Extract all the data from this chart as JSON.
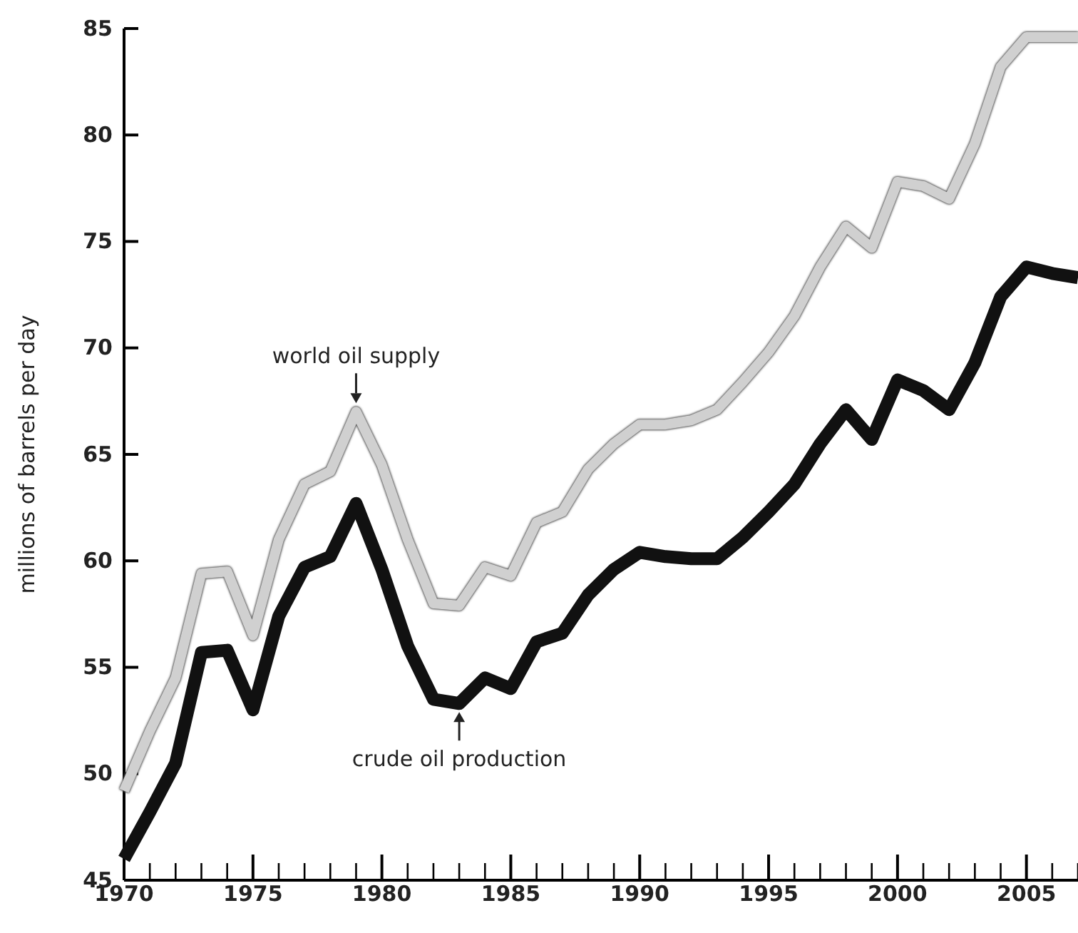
{
  "chart_data": {
    "type": "line",
    "ylabel": "millions of barrels per day",
    "x": [
      1970,
      1971,
      1972,
      1973,
      1974,
      1975,
      1976,
      1977,
      1978,
      1979,
      1980,
      1981,
      1982,
      1983,
      1984,
      1985,
      1986,
      1987,
      1988,
      1989,
      1990,
      1991,
      1992,
      1993,
      1994,
      1995,
      1996,
      1997,
      1998,
      1999,
      2000,
      2001,
      2002,
      2003,
      2004,
      2005,
      2006,
      2007
    ],
    "series": [
      {
        "color": "#d0d0d0",
        "values": [
          49.2,
          52,
          54.5,
          59.4,
          59.5,
          56.5,
          61,
          63.6,
          64.2,
          67,
          64.5,
          61,
          58,
          57.9,
          59.7,
          59.3,
          61.8,
          62.3,
          64.3,
          65.5,
          66.4,
          66.4,
          66.6,
          67.1,
          68.4,
          69.8,
          71.5,
          73.8,
          75.7,
          74.7,
          77.8,
          77.6,
          77,
          79.6,
          83.2,
          84.6,
          84.6,
          84.6
        ]
      },
      {
        "color": "#111111",
        "values": [
          46,
          48.2,
          50.5,
          55.7,
          55.8,
          53,
          57.4,
          59.7,
          60.2,
          62.7,
          59.6,
          56,
          53.5,
          53.3,
          54.5,
          54,
          56.2,
          56.6,
          58.4,
          59.6,
          60.4,
          60.2,
          60.1,
          60.1,
          61.1,
          62.3,
          63.6,
          65.5,
          67.1,
          65.7,
          68.5,
          68,
          67.1,
          69.3,
          72.4,
          73.8,
          73.5,
          73.3
        ]
      }
    ],
    "xlim": [
      1970,
      2007
    ],
    "xticks": [
      1970,
      {
        "value": 1971,
        "label": null
      },
      {
        "value": 1972,
        "label": null
      },
      {
        "value": 1973,
        "label": null
      },
      {
        "value": 1974,
        "label": null
      },
      1975,
      {
        "value": 1976,
        "label": null
      },
      {
        "value": 1977,
        "label": null
      },
      {
        "value": 1978,
        "label": null
      },
      {
        "value": 1979,
        "label": null
      },
      1980,
      {
        "value": 1981,
        "label": null
      },
      {
        "value": 1982,
        "label": null
      },
      {
        "value": 1983,
        "label": null
      },
      {
        "value": 1984,
        "label": null
      },
      1985,
      {
        "value": 1986,
        "label": null
      },
      {
        "value": 1987,
        "label": null
      },
      {
        "value": 1988,
        "label": null
      },
      {
        "value": 1989,
        "label": null
      },
      1990,
      {
        "value": 1991,
        "label": null
      },
      {
        "value": 1992,
        "label": null
      },
      {
        "value": 1993,
        "label": null
      },
      {
        "value": 1994,
        "label": null
      },
      1995,
      {
        "value": 1996,
        "label": null
      },
      {
        "value": 1997,
        "label": null
      },
      {
        "value": 1998,
        "label": null
      },
      {
        "value": 1999,
        "label": null
      },
      2000,
      {
        "value": 2001,
        "label": null
      },
      {
        "value": 2002,
        "label": null
      },
      {
        "value": 2003,
        "label": null
      },
      {
        "value": 2004,
        "label": null
      },
      2005,
      {
        "value": 2006,
        "label": null
      },
      {
        "value": 2007,
        "label": null
      }
    ],
    "ylim": [
      45,
      85
    ],
    "yticks": [
      45,
      50,
      55,
      60,
      65,
      70,
      75,
      80,
      85
    ],
    "annotations": [
      {
        "text": "world oil supply",
        "x": 1979,
        "y": 67
      },
      {
        "text": "crude oil production",
        "x": 1983,
        "y": 53.3
      }
    ],
    "grid": false,
    "marker": "none",
    "line_style": "solid"
  }
}
